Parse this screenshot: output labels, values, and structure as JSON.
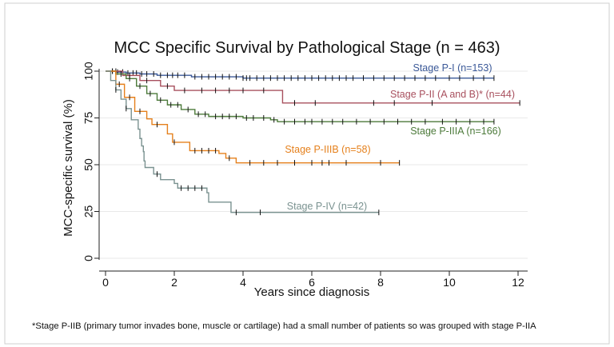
{
  "footnote": "*Stage P-IIB (primary tumor invades bone, muscle or cartilage) had a small number of patients so was grouped with stage P-IIA",
  "chart_data": {
    "type": "line",
    "title": "MCC Specific Survival by Pathological Stage (n = 463)",
    "xlabel": "Years since diagnosis",
    "ylabel": "MCC-specific survival (%)",
    "xlim": [
      0,
      12
    ],
    "ylim": [
      0,
      100
    ],
    "xticks": [
      0,
      2,
      4,
      6,
      8,
      10,
      12
    ],
    "yticks": [
      0,
      25,
      50,
      75,
      100
    ],
    "grid": "horizontal",
    "series": [
      {
        "name": "Stage P-I (n=153)",
        "color": "#3b5998",
        "steps": [
          [
            0,
            100
          ],
          [
            0.3,
            99.5
          ],
          [
            0.6,
            99
          ],
          [
            1,
            98.5
          ],
          [
            1.5,
            97.8
          ],
          [
            2.5,
            97
          ],
          [
            4,
            96.3
          ],
          [
            11.3,
            96.3
          ]
        ],
        "censor": [
          0.2,
          0.35,
          0.5,
          0.65,
          0.8,
          0.9,
          1.05,
          1.2,
          1.4,
          1.6,
          1.8,
          1.95,
          2.1,
          2.3,
          2.6,
          2.8,
          3.0,
          3.2,
          3.4,
          3.6,
          3.8,
          4.0,
          4.1,
          4.2,
          4.4,
          4.6,
          4.8,
          5.0,
          5.2,
          5.4,
          5.6,
          5.8,
          6.0,
          6.2,
          6.4,
          6.6,
          6.8,
          7.0,
          7.2,
          7.5,
          7.8,
          8.1,
          8.4,
          8.7,
          9.0,
          9.3,
          9.6,
          10.0,
          10.3,
          10.7,
          11.0,
          11.3
        ]
      },
      {
        "name": "Stage P-II (A and B)* (n=44)",
        "color": "#a8505e",
        "steps": [
          [
            0,
            100
          ],
          [
            0.5,
            97.7
          ],
          [
            1.0,
            95
          ],
          [
            1.6,
            92
          ],
          [
            2.0,
            89.7
          ],
          [
            5.1,
            89.7
          ],
          [
            5.15,
            83
          ],
          [
            12.05,
            83
          ]
        ],
        "censor": [
          0.3,
          0.7,
          1.2,
          1.8,
          2.3,
          2.8,
          3.2,
          3.6,
          4.0,
          4.6,
          5.5,
          6.1,
          7.8,
          8.4,
          9.5,
          12.05
        ]
      },
      {
        "name": "Stage P-IIIA (n=166)",
        "color": "#4c7a3a",
        "steps": [
          [
            0,
            100
          ],
          [
            0.3,
            98.5
          ],
          [
            0.6,
            96
          ],
          [
            0.9,
            92
          ],
          [
            1.2,
            88
          ],
          [
            1.5,
            84.5
          ],
          [
            1.8,
            82
          ],
          [
            2.2,
            79.5
          ],
          [
            2.6,
            77
          ],
          [
            3.0,
            75.8
          ],
          [
            4.0,
            75
          ],
          [
            4.8,
            74
          ],
          [
            5.0,
            73
          ],
          [
            11.3,
            73
          ]
        ],
        "censor": [
          0.2,
          0.45,
          0.7,
          1.0,
          1.3,
          1.6,
          1.9,
          2.1,
          2.4,
          2.7,
          2.9,
          3.2,
          3.4,
          3.6,
          3.8,
          4.1,
          4.3,
          4.6,
          4.9,
          5.2,
          5.5,
          5.8,
          6.0,
          6.3,
          6.6,
          6.9,
          7.3,
          7.7,
          8.1,
          8.5,
          8.9,
          9.3,
          9.8,
          10.2,
          10.6,
          11.0,
          11.3
        ]
      },
      {
        "name": "Stage P-IIIB (n=58)",
        "color": "#e5801c",
        "steps": [
          [
            0,
            100
          ],
          [
            0.3,
            93
          ],
          [
            0.55,
            86
          ],
          [
            0.85,
            78.5
          ],
          [
            1.2,
            74.5
          ],
          [
            1.35,
            71.5
          ],
          [
            1.8,
            66.5
          ],
          [
            1.95,
            62
          ],
          [
            2.45,
            57.5
          ],
          [
            3.3,
            56
          ],
          [
            3.5,
            53.5
          ],
          [
            3.8,
            51
          ],
          [
            8.55,
            51
          ]
        ],
        "censor": [
          0.4,
          0.7,
          1.0,
          1.5,
          2.0,
          2.6,
          2.8,
          3.0,
          3.2,
          3.6,
          4.2,
          4.6,
          5.0,
          5.5,
          6.0,
          6.3,
          6.5,
          7.0,
          8.0,
          8.55
        ]
      },
      {
        "name": "Stage P-IV (n=42)",
        "color": "#7a9290",
        "steps": [
          [
            0,
            100
          ],
          [
            0.15,
            95
          ],
          [
            0.3,
            90
          ],
          [
            0.45,
            85
          ],
          [
            0.6,
            80
          ],
          [
            0.75,
            74
          ],
          [
            0.95,
            69
          ],
          [
            1.0,
            64
          ],
          [
            1.05,
            60
          ],
          [
            1.1,
            57
          ],
          [
            1.12,
            52
          ],
          [
            1.15,
            48.5
          ],
          [
            1.4,
            45
          ],
          [
            1.6,
            42
          ],
          [
            2.0,
            40
          ],
          [
            2.1,
            37.5
          ],
          [
            2.95,
            35
          ],
          [
            3.0,
            30
          ],
          [
            3.65,
            24.5
          ],
          [
            7.95,
            24.5
          ]
        ],
        "censor": [
          0.3,
          0.6,
          1.5,
          2.2,
          2.4,
          2.6,
          2.8,
          3.8,
          4.5,
          7.95
        ]
      }
    ],
    "labels": [
      {
        "text": "Stage P-I (n=153)",
        "series": 0
      },
      {
        "text": "Stage P-II (A and B)* (n=44)",
        "series": 1
      },
      {
        "text": "Stage P-IIIA (n=166)",
        "series": 2
      },
      {
        "text": "Stage P-IIIB (n=58)",
        "series": 3
      },
      {
        "text": "Stage P-IV (n=42)",
        "series": 4
      }
    ]
  }
}
